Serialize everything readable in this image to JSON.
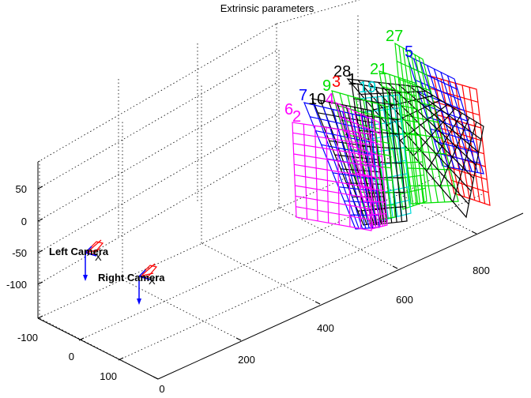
{
  "chart_data": {
    "type": "3d-extrinsic",
    "title": "Extrinsic parameters",
    "z_ticks": [
      "50",
      "0",
      "-50",
      "-100"
    ],
    "y_ticks": [
      "-100",
      "0",
      "100"
    ],
    "x_ticks": [
      "0",
      "200",
      "400",
      "600",
      "800"
    ],
    "cameras": [
      {
        "name": "Left Camera",
        "axis_label": "X",
        "color": "#0000ff",
        "frustum_color": "#ff0000"
      },
      {
        "name": "Right Camera",
        "axis_label": "X",
        "color": "#0000ff",
        "frustum_color": "#ff0000"
      }
    ],
    "boards": [
      {
        "label": "27",
        "color": "#00e000"
      },
      {
        "label": "5",
        "color": "#0000ff"
      },
      {
        "label": "28",
        "color": "#000000"
      },
      {
        "label": "21",
        "color": "#00e000"
      },
      {
        "label": "19",
        "color": "#00d8d8"
      },
      {
        "label": "9",
        "color": "#00e000"
      },
      {
        "label": "3",
        "color": "#ff0000"
      },
      {
        "label": "7",
        "color": "#0000ff"
      },
      {
        "label": "10",
        "color": "#000000"
      },
      {
        "label": "4",
        "color": "#ff00ff"
      },
      {
        "label": "1",
        "color": "#000000"
      },
      {
        "label": "6",
        "color": "#ff00ff"
      },
      {
        "label": "2",
        "color": "#ff00ff"
      }
    ],
    "grid": true
  }
}
